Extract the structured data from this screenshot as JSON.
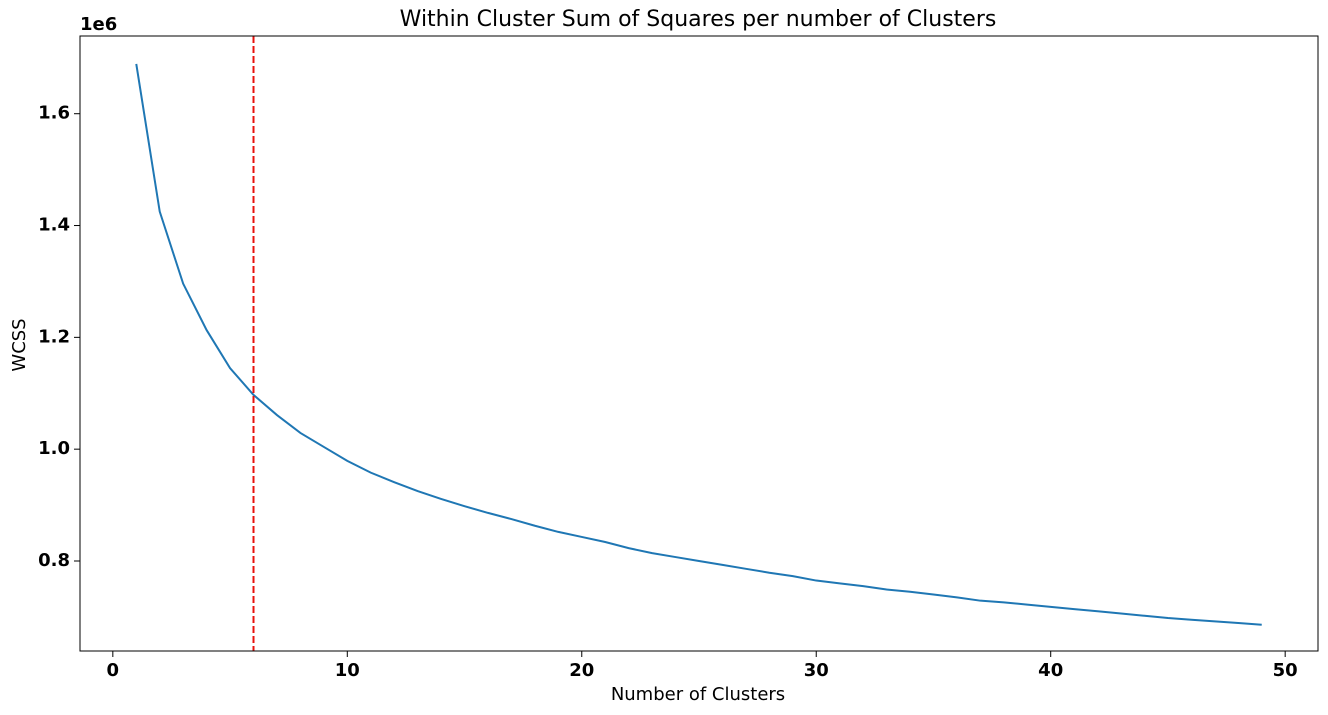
{
  "chart_data": {
    "type": "line",
    "title": "Within Cluster Sum of Squares per number of Clusters",
    "x_label": "Number of Clusters",
    "y_label": "WCSS",
    "y_offset_label": "1e6",
    "x": [
      1,
      2,
      3,
      4,
      5,
      6,
      7,
      8,
      9,
      10,
      11,
      12,
      13,
      14,
      15,
      16,
      17,
      18,
      19,
      20,
      21,
      22,
      23,
      24,
      25,
      26,
      27,
      28,
      29,
      30,
      31,
      32,
      33,
      34,
      35,
      36,
      37,
      38,
      39,
      40,
      41,
      42,
      43,
      44,
      45,
      46,
      47,
      48,
      49
    ],
    "values": [
      1.689,
      1.425,
      1.296,
      1.213,
      1.145,
      1.097,
      1.061,
      1.029,
      1.004,
      0.979,
      0.958,
      0.941,
      0.925,
      0.911,
      0.898,
      0.886,
      0.875,
      0.863,
      0.852,
      0.843,
      0.834,
      0.823,
      0.814,
      0.807,
      0.8,
      0.793,
      0.786,
      0.779,
      0.773,
      0.765,
      0.76,
      0.755,
      0.749,
      0.745,
      0.74,
      0.735,
      0.729,
      0.726,
      0.722,
      0.718,
      0.714,
      0.71,
      0.706,
      0.702,
      0.698,
      0.695,
      0.692,
      0.689,
      0.686
    ],
    "color": "#1f77b4",
    "vline": {
      "x": 6,
      "color": "#e8120c"
    },
    "xlim": [
      -1.4,
      51.4
    ],
    "xticks": [
      0,
      10,
      20,
      30,
      40,
      50
    ],
    "ylim": [
      0.639,
      1.739
    ],
    "yticks": [
      {
        "value": 0.8,
        "label": "0.8"
      },
      {
        "value": 1.0,
        "label": "1.0"
      },
      {
        "value": 1.2,
        "label": "1.2"
      },
      {
        "value": 1.4,
        "label": "1.4"
      },
      {
        "value": 1.6,
        "label": "1.6"
      }
    ],
    "grid": false
  }
}
